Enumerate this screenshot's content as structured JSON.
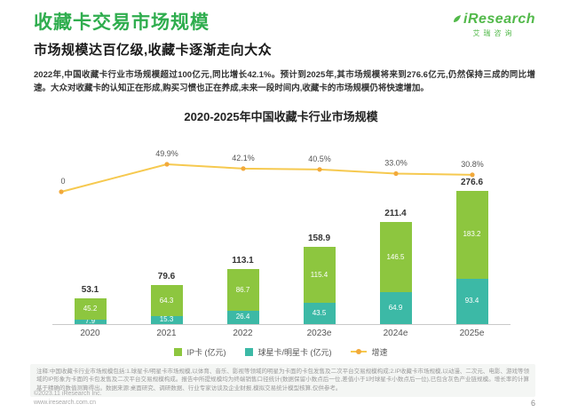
{
  "header": {
    "title": "收藏卡交易市场规模",
    "subtitle": "市场规模达百亿级,收藏卡逐渐走向大众",
    "logo": {
      "name": "iResearch",
      "cn": "艾瑞咨询"
    }
  },
  "summary": "2022年,中国收藏卡行业市场规模超过100亿元,同比增长42.1%。预计到2025年,其市场规模将来到276.6亿元,仍然保持三成的同比增速。大众对收藏卡的认知正在形成,购买习惯也正在养成,未来一段时间内,收藏卡的市场规模仍将快速增加。",
  "chart_data": {
    "type": "bar",
    "stacked": true,
    "title": "2020-2025年中国收藏卡行业市场规模",
    "xlabel": "",
    "ylabel": "",
    "unit": "亿元",
    "categories": [
      "2020",
      "2021",
      "2022",
      "2023e",
      "2024e",
      "2025e"
    ],
    "series": [
      {
        "name": "球星卡/明星卡 (亿元)",
        "color": "#3cb9a6",
        "values": [
          7.9,
          15.3,
          26.4,
          43.5,
          64.9,
          93.4
        ]
      },
      {
        "name": "IP卡 (亿元)",
        "color": "#8dc63f",
        "values": [
          45.2,
          64.3,
          86.7,
          115.4,
          146.5,
          183.2
        ]
      }
    ],
    "totals": [
      53.1,
      79.6,
      113.1,
      158.9,
      211.4,
      276.6
    ],
    "growth": {
      "name": "增速",
      "color": "#f6c94f",
      "marker_color": "#f2a93b",
      "values": [
        0,
        49.9,
        42.1,
        40.5,
        33.0,
        30.8
      ],
      "labels": [
        "0",
        "49.9%",
        "42.1%",
        "40.5%",
        "33.0%",
        "30.8%"
      ]
    },
    "ylim": [
      0,
      300
    ],
    "grid": false,
    "legend_position": "bottom"
  },
  "legend": [
    {
      "label": "IP卡 (亿元)",
      "color": "#8dc63f",
      "type": "box"
    },
    {
      "label": "球星卡/明星卡 (亿元)",
      "color": "#3cb9a6",
      "type": "box"
    },
    {
      "label": "增速",
      "color": "#f6c94f",
      "marker_color": "#f2a93b",
      "type": "line"
    }
  ],
  "note": "注释:中国收藏卡行业市场规模包括:1.球星卡/明星卡市场规模,以体育、音乐、影视等领域的明星为卡面的卡包发售及二次平台交易规模构成;2.IP收藏卡市场规模,以动漫、二次元、电影、游戏等领域的IP形象为卡面的卡包发售及二次平台交易规模构成。报告中所提规模均为终端销售口径统计(数据保留小数点后一位,差值小于1时球星卡小数点后一位),已包含灰色产业链规模。增长率的计算基于精确的数值测算得出。数据来源:桌面研究、调研数据、行业专家访谈及企业财报,模拟交易统计模型核算,仅供参考。",
  "footer": {
    "copyright": "©2023.11 iResearch Inc.",
    "website": "www.iresearch.com.cn",
    "page": "6"
  }
}
